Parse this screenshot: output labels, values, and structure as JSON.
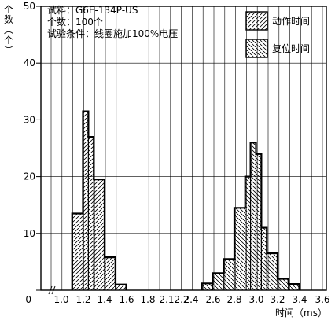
{
  "ylabel_chars": [
    "个",
    "数",
    "︵",
    "个",
    "︶"
  ],
  "xlabel": "时间（ms）",
  "info_lines": [
    "试料：G6E-134P-US",
    "个数：100个",
    "试验条件：线圈施加100%电压"
  ],
  "chart_data": {
    "type": "bar",
    "title": "",
    "xlabel": "时间（ms）",
    "ylabel": "个数（个）",
    "ylim": [
      0,
      50
    ],
    "yticks": [
      0,
      10,
      20,
      30,
      40,
      50
    ],
    "xtick_labels": [
      "0",
      "1.0",
      "1.2",
      "1.4",
      "1.6",
      "1.8",
      "2.1",
      "2.2",
      "2.4",
      "2.6",
      "2.8",
      "3.0",
      "3.2",
      "3.4",
      "3.6"
    ],
    "grid": true,
    "legend_position": "top-right",
    "series": [
      {
        "name": "动作时间",
        "hatch": "forward",
        "bin_edges": [
          1.1,
          1.2,
          1.25,
          1.3,
          1.4,
          1.5,
          1.6
        ],
        "values": [
          13.5,
          31.5,
          27,
          19.5,
          5.8,
          1
        ]
      },
      {
        "name": "复位时间",
        "hatch": "backward",
        "bin_edges": [
          2.5,
          2.6,
          2.7,
          2.8,
          2.9,
          2.95,
          3.0,
          3.05,
          3.1,
          3.2,
          3.3,
          3.4
        ],
        "values": [
          1.2,
          3,
          5.5,
          14.5,
          20,
          26,
          24,
          11,
          6.5,
          2,
          1.1
        ]
      }
    ]
  }
}
